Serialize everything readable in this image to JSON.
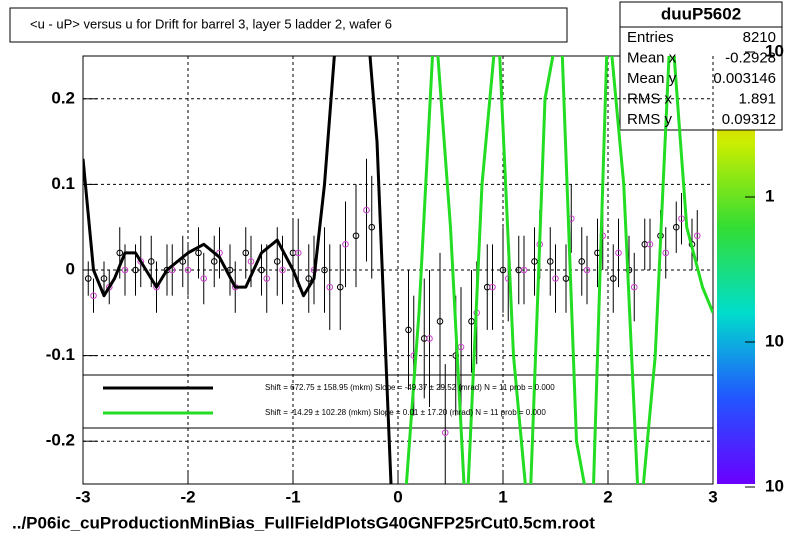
{
  "chart_data": {
    "type": "scatter",
    "title": "<u - uP>       versus   u for Drift for barrel 3, layer 5 ladder 2, wafer 6",
    "footer": "../P06ic_cuProductionMinBias_FullFieldPlotsG40GNFP25rCut0.5cm.root",
    "stats": {
      "name": "duuP5602",
      "rows": [
        [
          "Entries",
          "8210"
        ],
        [
          "Mean x",
          "-0.2928"
        ],
        [
          "Mean y",
          "0.003146"
        ],
        [
          "RMS x",
          "1.891"
        ],
        [
          "RMS y",
          "0.09312"
        ]
      ]
    },
    "xlim": [
      -3,
      3
    ],
    "ylim": [
      -0.25,
      0.25
    ],
    "xticks": [
      -3,
      -2,
      -1,
      0,
      1,
      2,
      3
    ],
    "yticks": [
      -0.2,
      -0.1,
      0,
      0.1,
      0.2
    ],
    "grid": true,
    "zlim": [
      0.01,
      10
    ],
    "zlog": true,
    "zticks": [
      {
        "value": 10,
        "label": "10"
      },
      1,
      {
        "value": 0.1,
        "label": "10"
      },
      {
        "value": 0.01,
        "label": "10"
      }
    ],
    "series": [
      {
        "name": "profile",
        "color": "#000000",
        "x": [
          -2.95,
          -2.8,
          -2.65,
          -2.5,
          -2.35,
          -2.2,
          -2.05,
          -1.9,
          -1.75,
          -1.6,
          -1.45,
          -1.3,
          -1.15,
          -1.0,
          -0.85,
          -0.7,
          -0.55,
          -0.4,
          -0.25,
          0.1,
          0.25,
          0.4,
          0.55,
          0.7,
          0.85,
          1.0,
          1.15,
          1.3,
          1.45,
          1.6,
          1.75,
          1.9,
          2.05,
          2.2,
          2.35,
          2.5,
          2.65,
          2.8
        ],
        "values": [
          -0.01,
          -0.01,
          0.02,
          0.0,
          0.01,
          0.0,
          0.01,
          0.02,
          0.01,
          0.0,
          0.02,
          0.0,
          0.01,
          0.02,
          -0.01,
          0.0,
          -0.02,
          0.04,
          0.05,
          -0.07,
          -0.08,
          -0.06,
          -0.1,
          -0.06,
          -0.02,
          0.0,
          0.0,
          0.01,
          0.01,
          -0.01,
          0.01,
          0.02,
          -0.01,
          0.0,
          0.03,
          0.04,
          0.05,
          0.03
        ],
        "errors": [
          0.02,
          0.02,
          0.03,
          0.03,
          0.03,
          0.03,
          0.03,
          0.03,
          0.03,
          0.03,
          0.03,
          0.03,
          0.04,
          0.04,
          0.04,
          0.05,
          0.05,
          0.06,
          0.06,
          0.07,
          0.07,
          0.08,
          0.07,
          0.06,
          0.05,
          0.05,
          0.04,
          0.04,
          0.04,
          0.04,
          0.04,
          0.04,
          0.04,
          0.04,
          0.03,
          0.03,
          0.03,
          0.03
        ]
      },
      {
        "name": "profile2",
        "color": "#cc44cc",
        "x": [
          -2.9,
          -2.75,
          -2.6,
          -2.45,
          -2.3,
          -2.15,
          -2.0,
          -1.85,
          -1.7,
          -1.55,
          -1.4,
          -1.25,
          -1.1,
          -0.95,
          -0.8,
          -0.65,
          -0.5,
          -0.3,
          0.15,
          0.3,
          0.45,
          0.6,
          0.75,
          0.9,
          1.05,
          1.2,
          1.35,
          1.5,
          1.65,
          1.8,
          1.95,
          2.1,
          2.25,
          2.4,
          2.55,
          2.7,
          2.85
        ],
        "values": [
          -0.03,
          -0.02,
          0.0,
          0.01,
          -0.02,
          0.0,
          0.0,
          -0.01,
          0.02,
          -0.02,
          0.01,
          -0.01,
          0.0,
          0.02,
          0.0,
          -0.02,
          0.03,
          0.07,
          -0.1,
          -0.08,
          -0.19,
          -0.09,
          -0.05,
          -0.02,
          -0.01,
          0.0,
          0.03,
          -0.01,
          0.06,
          0.0,
          0.04,
          0.02,
          -0.02,
          0.03,
          0.02,
          0.06,
          0.04
        ],
        "errors": [
          0.02,
          0.02,
          0.03,
          0.03,
          0.03,
          0.03,
          0.03,
          0.03,
          0.03,
          0.03,
          0.03,
          0.04,
          0.04,
          0.04,
          0.04,
          0.05,
          0.05,
          0.06,
          0.07,
          0.08,
          0.08,
          0.07,
          0.06,
          0.05,
          0.05,
          0.04,
          0.04,
          0.04,
          0.04,
          0.04,
          0.04,
          0.04,
          0.04,
          0.03,
          0.03,
          0.03,
          0.03
        ]
      }
    ],
    "fits": [
      {
        "label": "Shift =   672.75 ± 158.95 (mkm) Slope =   -49.37 ± 29.52 (mrad)  N = 11 prob = 0.000",
        "color": "#000000",
        "x": [
          -3.0,
          -2.9,
          -2.8,
          -2.7,
          -2.6,
          -2.5,
          -2.4,
          -2.3,
          -2.2,
          -2.0,
          -1.85,
          -1.7,
          -1.55,
          -1.45,
          -1.3,
          -1.15,
          -1.0,
          -0.9,
          -0.8,
          -0.7,
          -0.6,
          -0.5,
          -0.3,
          -0.2,
          -0.15,
          -0.1,
          -0.05
        ],
        "values": [
          0.13,
          0.0,
          -0.03,
          -0.01,
          0.02,
          0.02,
          0.0,
          -0.02,
          0.0,
          0.02,
          0.03,
          0.015,
          -0.02,
          -0.02,
          0.02,
          0.035,
          0.0,
          -0.03,
          -0.01,
          0.1,
          0.26,
          null,
          0.3,
          0.15,
          0.0,
          -0.15,
          -0.3
        ]
      },
      {
        "label": "Shift =   -14.29 ± 102.28 (mkm) Slope =     0.01 ± 17.20 (mrad)  N = 11 prob = 0.000",
        "color": "#22dd22",
        "x": [
          0.05,
          0.2,
          0.35,
          0.5,
          0.65,
          0.8,
          0.95,
          1.1,
          1.25,
          1.4,
          1.55,
          1.7,
          1.85,
          2.0,
          2.15,
          2.3,
          2.45,
          2.6,
          2.75,
          2.9,
          3.0
        ],
        "values": [
          -0.3,
          -0.05,
          0.3,
          0.05,
          -0.3,
          0.1,
          0.3,
          -0.1,
          -0.3,
          0.2,
          0.3,
          -0.2,
          -0.3,
          0.3,
          0.1,
          -0.3,
          -0.1,
          0.3,
          0.05,
          -0.02,
          -0.05
        ]
      }
    ]
  }
}
